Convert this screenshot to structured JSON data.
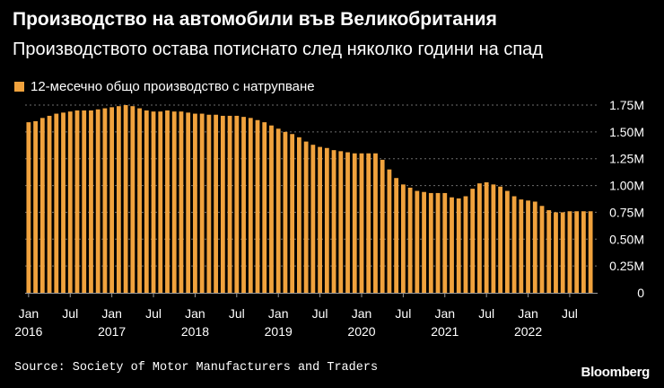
{
  "header": {
    "title": "Производство на автомобили във Великобритания",
    "subtitle": "Производството остава потиснато след няколко години на спад"
  },
  "footer": {
    "source": "Source: Society of Motor Manufacturers and Traders",
    "logo": "Bloomberg"
  },
  "colors": {
    "background": "#000000",
    "bar": "#f0a23d",
    "grid": "#6e6e6e",
    "text": "#ffffff"
  },
  "chart_data": {
    "type": "bar",
    "legend": "top-left",
    "grid": true,
    "y_axis_side": "right",
    "ylim": [
      0,
      1.75
    ],
    "yticks": [
      0,
      0.25,
      0.5,
      0.75,
      1.0,
      1.25,
      1.5,
      1.75
    ],
    "ytick_labels": [
      "0",
      "0.25M",
      "0.50M",
      "0.75M",
      "1.00M",
      "1.25M",
      "1.50M",
      "1.75M"
    ],
    "x_tick_labels": [
      {
        "index": 0,
        "month": "Jan",
        "year": "2016"
      },
      {
        "index": 6,
        "month": "Jul",
        "year": ""
      },
      {
        "index": 12,
        "month": "Jan",
        "year": "2017"
      },
      {
        "index": 18,
        "month": "Jul",
        "year": ""
      },
      {
        "index": 24,
        "month": "Jan",
        "year": "2018"
      },
      {
        "index": 30,
        "month": "Jul",
        "year": ""
      },
      {
        "index": 36,
        "month": "Jan",
        "year": "2019"
      },
      {
        "index": 42,
        "month": "Jul",
        "year": ""
      },
      {
        "index": 48,
        "month": "Jan",
        "year": "2020"
      },
      {
        "index": 54,
        "month": "Jul",
        "year": ""
      },
      {
        "index": 60,
        "month": "Jan",
        "year": "2021"
      },
      {
        "index": 66,
        "month": "Jul",
        "year": ""
      },
      {
        "index": 72,
        "month": "Jan",
        "year": "2022"
      },
      {
        "index": 78,
        "month": "Jul",
        "year": ""
      }
    ],
    "series": [
      {
        "name": "12-месечно общо производство с натрупване",
        "color": "#f0a23d",
        "values": [
          1.59,
          1.6,
          1.63,
          1.65,
          1.67,
          1.68,
          1.69,
          1.7,
          1.7,
          1.7,
          1.71,
          1.72,
          1.73,
          1.74,
          1.75,
          1.74,
          1.72,
          1.7,
          1.69,
          1.69,
          1.7,
          1.69,
          1.69,
          1.68,
          1.67,
          1.67,
          1.66,
          1.66,
          1.65,
          1.65,
          1.65,
          1.64,
          1.63,
          1.61,
          1.59,
          1.56,
          1.53,
          1.5,
          1.48,
          1.45,
          1.41,
          1.38,
          1.36,
          1.35,
          1.33,
          1.32,
          1.31,
          1.3,
          1.3,
          1.3,
          1.3,
          1.24,
          1.15,
          1.07,
          1.01,
          0.98,
          0.95,
          0.94,
          0.93,
          0.93,
          0.93,
          0.89,
          0.88,
          0.9,
          0.97,
          1.02,
          1.03,
          1.01,
          0.99,
          0.95,
          0.9,
          0.87,
          0.86,
          0.85,
          0.81,
          0.77,
          0.75,
          0.75,
          0.76,
          0.76,
          0.76,
          0.76
        ]
      }
    ]
  }
}
